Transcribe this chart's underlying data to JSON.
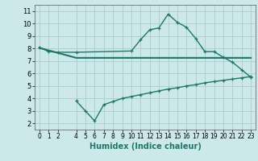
{
  "xlabel": "Humidex (Indice chaleur)",
  "bg_color": "#cce8e8",
  "grid_color": "#aacccc",
  "line_color": "#1a7a6a",
  "xlim": [
    -0.5,
    23.5
  ],
  "ylim": [
    1.5,
    11.5
  ],
  "xticks": [
    0,
    1,
    2,
    4,
    5,
    6,
    7,
    8,
    9,
    10,
    11,
    12,
    13,
    14,
    15,
    16,
    17,
    18,
    19,
    20,
    21,
    22,
    23
  ],
  "yticks": [
    2,
    3,
    4,
    5,
    6,
    7,
    8,
    9,
    10,
    11
  ],
  "line1_x": [
    0,
    1,
    2,
    4,
    10,
    11,
    12,
    13,
    14,
    15,
    16,
    17,
    18,
    19,
    20,
    21,
    22,
    23
  ],
  "line1_y": [
    8.1,
    7.75,
    7.7,
    7.7,
    7.8,
    8.7,
    9.5,
    9.65,
    10.75,
    10.1,
    9.7,
    8.8,
    7.75,
    7.75,
    7.3,
    6.9,
    6.3,
    5.7
  ],
  "line2_x": [
    0,
    4,
    10,
    17,
    23
  ],
  "line2_y": [
    8.05,
    7.25,
    7.25,
    7.25,
    7.25
  ],
  "line3_x": [
    4,
    5,
    6,
    7,
    8,
    9,
    10,
    11,
    12,
    13,
    14,
    15,
    16,
    17,
    18,
    19,
    20,
    21,
    22,
    23
  ],
  "line3_y": [
    3.8,
    3.0,
    2.2,
    3.5,
    3.75,
    4.0,
    4.15,
    4.3,
    4.45,
    4.6,
    4.75,
    4.85,
    5.0,
    5.1,
    5.25,
    5.35,
    5.45,
    5.55,
    5.65,
    5.75
  ]
}
